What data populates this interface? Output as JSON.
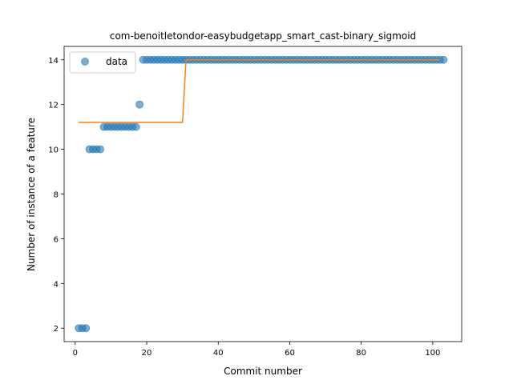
{
  "chart_data": {
    "type": "scatter",
    "title": "com-benoitletondor-easybudgetapp_smart_cast-binary_sigmoid",
    "xlabel": "Commit number",
    "ylabel": "Number of instance of a feature",
    "xlim": [
      -3.1,
      108.1
    ],
    "ylim": [
      1.4,
      14.6
    ],
    "xticks": [
      0,
      20,
      40,
      60,
      80,
      100
    ],
    "yticks": [
      2,
      4,
      6,
      8,
      10,
      12,
      14
    ],
    "grid": false,
    "legend": {
      "placement": "top-left",
      "entries": [
        "data"
      ]
    },
    "series": [
      {
        "name": "data",
        "kind": "scatter",
        "color": "#1f77b4",
        "x": [
          1,
          2,
          3,
          4,
          5,
          6,
          7,
          8,
          9,
          10,
          11,
          12,
          13,
          14,
          15,
          16,
          17,
          18,
          19,
          20,
          21,
          22,
          23,
          24,
          25,
          26,
          27,
          28,
          29,
          30,
          31,
          32,
          33,
          34,
          35,
          36,
          37,
          38,
          39,
          40,
          41,
          42,
          43,
          44,
          45,
          46,
          47,
          48,
          49,
          50,
          51,
          52,
          53,
          54,
          55,
          56,
          57,
          58,
          59,
          60,
          61,
          62,
          63,
          64,
          65,
          66,
          67,
          68,
          69,
          70,
          71,
          72,
          73,
          74,
          75,
          76,
          77,
          78,
          79,
          80,
          81,
          82,
          83,
          84,
          85,
          86,
          87,
          88,
          89,
          90,
          91,
          92,
          93,
          94,
          95,
          96,
          97,
          98,
          99,
          100,
          101,
          102,
          103
        ],
        "y": [
          2,
          2,
          2,
          10,
          10,
          10,
          10,
          11,
          11,
          11,
          11,
          11,
          11,
          11,
          11,
          11,
          11,
          12,
          14,
          14,
          14,
          14,
          14,
          14,
          14,
          14,
          14,
          14,
          14,
          14,
          14,
          14,
          14,
          14,
          14,
          14,
          14,
          14,
          14,
          14,
          14,
          14,
          14,
          14,
          14,
          14,
          14,
          14,
          14,
          14,
          14,
          14,
          14,
          14,
          14,
          14,
          14,
          14,
          14,
          14,
          14,
          14,
          14,
          14,
          14,
          14,
          14,
          14,
          14,
          14,
          14,
          14,
          14,
          14,
          14,
          14,
          14,
          14,
          14,
          14,
          14,
          14,
          14,
          14,
          14,
          14,
          14,
          14,
          14,
          14,
          14,
          14,
          14,
          14,
          14,
          14,
          14,
          14,
          14,
          14,
          14,
          14,
          14
        ]
      },
      {
        "kind": "line",
        "color": "#ff7f0e",
        "x": [
          1,
          30,
          31,
          102
        ],
        "y": [
          11.2,
          11.2,
          14,
          14
        ]
      }
    ]
  }
}
